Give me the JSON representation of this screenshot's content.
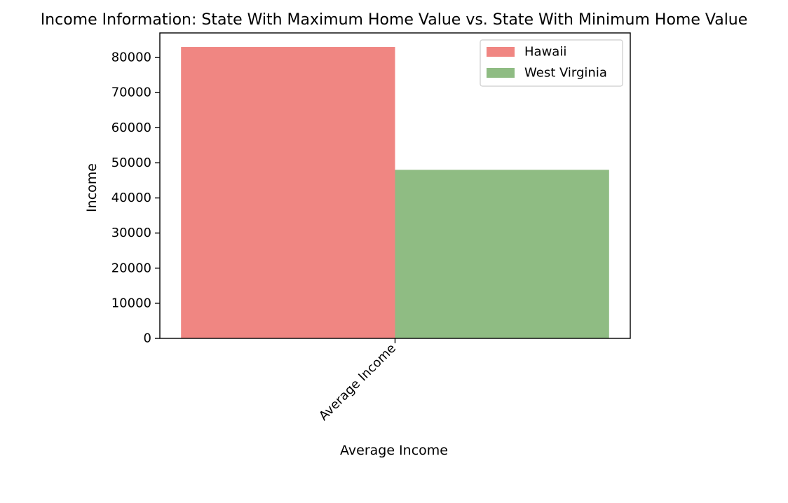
{
  "chart_data": {
    "type": "bar",
    "title": "Income Information: State With Maximum Home Value vs. State With Minimum Home Value",
    "xlabel": "Average Income",
    "ylabel": "Income",
    "categories": [
      "Average Income"
    ],
    "series": [
      {
        "name": "Hawaii",
        "values": [
          83000
        ],
        "color": "#f08682"
      },
      {
        "name": "West Virginia",
        "values": [
          48000
        ],
        "color": "#8fbc83"
      }
    ],
    "ylim": [
      0,
      87000
    ],
    "yticks": [
      0,
      10000,
      20000,
      30000,
      40000,
      50000,
      60000,
      70000,
      80000
    ],
    "grid": false,
    "legend_position": "top-right"
  }
}
